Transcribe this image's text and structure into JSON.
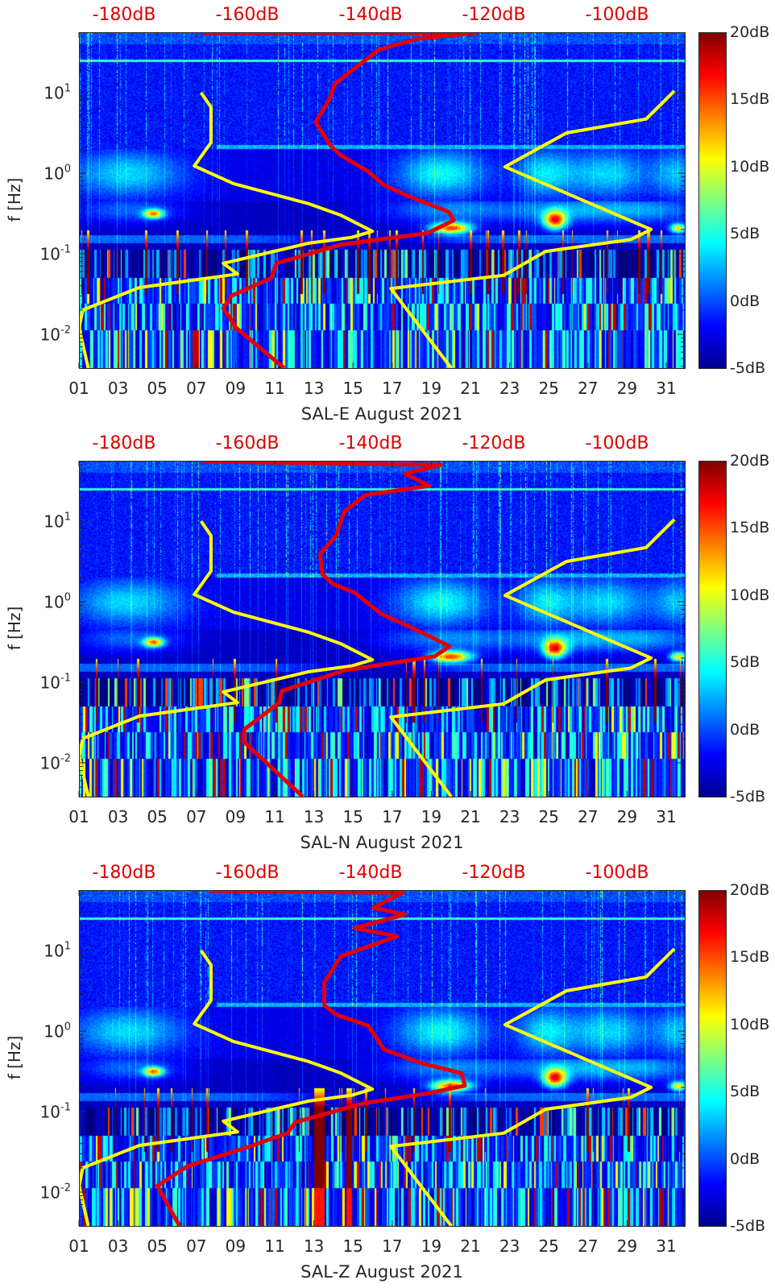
{
  "chart_data": [
    {
      "type": "heatmap",
      "xlabel": "SAL-E August 2021",
      "ylabel": "f [Hz]",
      "xlim": [
        1,
        32
      ],
      "ylim": [
        0.0038,
        56
      ],
      "x_ticks": [
        "01",
        "03",
        "05",
        "07",
        "09",
        "11",
        "13",
        "15",
        "17",
        "19",
        "21",
        "23",
        "25",
        "27",
        "29",
        "31"
      ],
      "y_ticks": [
        {
          "base": "10",
          "exp": "1",
          "value": 10
        },
        {
          "base": "10",
          "exp": "0",
          "value": 1
        },
        {
          "base": "10",
          "exp": "-1",
          "value": 0.1
        },
        {
          "base": "10",
          "exp": "-2",
          "value": 0.01
        }
      ],
      "top_axis": {
        "values": [
          -180,
          -160,
          -140,
          -120,
          -100
        ],
        "labels": [
          "-180dB",
          "-160dB",
          "-140dB",
          "-120dB",
          "-100dB"
        ]
      },
      "colorbar": {
        "range": [
          -5,
          20
        ],
        "labels": [
          "20dB",
          "15dB",
          "10dB",
          "5dB",
          "0dB",
          "-5dB"
        ]
      },
      "low_noise_model": {
        "color": "#ffff00",
        "points": [
          [
            10,
            -167.5
          ],
          [
            6.6,
            -165.9
          ],
          [
            2.4,
            -165.9
          ],
          [
            1.23,
            -168.6
          ],
          [
            0.74,
            -162.2
          ],
          [
            0.42,
            -150.1
          ],
          [
            0.3,
            -144.8
          ],
          [
            0.19,
            -139.7
          ],
          [
            0.16,
            -143.0
          ],
          [
            0.135,
            -150.1
          ],
          [
            0.076,
            -163.9
          ],
          [
            0.056,
            -161.6
          ],
          [
            0.038,
            -177.5
          ],
          [
            0.02,
            -186.7
          ],
          [
            0.012,
            -187.3
          ],
          [
            0.0038,
            -185.8
          ]
        ]
      },
      "high_noise_model": {
        "color": "#ffff00",
        "points": [
          [
            10.5,
            -90.7
          ],
          [
            4.7,
            -95.3
          ],
          [
            3.16,
            -108.2
          ],
          [
            1.2,
            -118.2
          ],
          [
            0.2,
            -94.5
          ],
          [
            0.15,
            -97.8
          ],
          [
            0.107,
            -111.6
          ],
          [
            0.054,
            -118.4
          ],
          [
            0.037,
            -136.7
          ],
          [
            0.0038,
            -126.9
          ]
        ]
      },
      "psd": {
        "color": "#e3000b",
        "points": [
          [
            55,
            -167.2
          ],
          [
            55,
            -123.0
          ],
          [
            47,
            -132.2
          ],
          [
            34,
            -138.7
          ],
          [
            20,
            -142.6
          ],
          [
            12.6,
            -145.9
          ],
          [
            8.9,
            -146.5
          ],
          [
            4.3,
            -148.9
          ],
          [
            2.2,
            -146.5
          ],
          [
            1.66,
            -144.8
          ],
          [
            1.05,
            -140.4
          ],
          [
            0.71,
            -137.8
          ],
          [
            0.52,
            -133.9
          ],
          [
            0.33,
            -127.3
          ],
          [
            0.26,
            -126.5
          ],
          [
            0.18,
            -130.8
          ],
          [
            0.13,
            -144.8
          ],
          [
            0.076,
            -155.3
          ],
          [
            0.05,
            -156.1
          ],
          [
            0.03,
            -162.6
          ],
          [
            0.021,
            -163.9
          ],
          [
            0.012,
            -161.8
          ],
          [
            0.0038,
            -154.0
          ]
        ]
      }
    },
    {
      "type": "heatmap",
      "xlabel": "SAL-N August 2021",
      "ylabel": "f [Hz]",
      "xlim": [
        1,
        32
      ],
      "ylim": [
        0.0038,
        56
      ],
      "x_ticks": [
        "01",
        "03",
        "05",
        "07",
        "09",
        "11",
        "13",
        "15",
        "17",
        "19",
        "21",
        "23",
        "25",
        "27",
        "29",
        "31"
      ],
      "y_ticks": [
        {
          "base": "10",
          "exp": "1",
          "value": 10
        },
        {
          "base": "10",
          "exp": "0",
          "value": 1
        },
        {
          "base": "10",
          "exp": "-1",
          "value": 0.1
        },
        {
          "base": "10",
          "exp": "-2",
          "value": 0.01
        }
      ],
      "top_axis": {
        "values": [
          -180,
          -160,
          -140,
          -120,
          -100
        ],
        "labels": [
          "-180dB",
          "-160dB",
          "-140dB",
          "-120dB",
          "-100dB"
        ]
      },
      "colorbar": {
        "range": [
          -5,
          20
        ],
        "labels": [
          "20dB",
          "15dB",
          "10dB",
          "5dB",
          "0dB",
          "-5dB"
        ]
      },
      "low_noise_model": {
        "color": "#ffff00",
        "points": [
          [
            10,
            -167.5
          ],
          [
            6.6,
            -165.9
          ],
          [
            2.4,
            -165.9
          ],
          [
            1.23,
            -168.6
          ],
          [
            0.74,
            -162.2
          ],
          [
            0.42,
            -150.1
          ],
          [
            0.3,
            -144.8
          ],
          [
            0.19,
            -139.7
          ],
          [
            0.16,
            -143.0
          ],
          [
            0.135,
            -150.1
          ],
          [
            0.076,
            -163.9
          ],
          [
            0.056,
            -161.6
          ],
          [
            0.038,
            -177.5
          ],
          [
            0.02,
            -186.7
          ],
          [
            0.012,
            -187.3
          ],
          [
            0.0038,
            -185.8
          ]
        ]
      },
      "high_noise_model": {
        "color": "#ffff00",
        "points": [
          [
            10.5,
            -90.7
          ],
          [
            4.7,
            -95.3
          ],
          [
            3.16,
            -108.2
          ],
          [
            1.2,
            -118.2
          ],
          [
            0.2,
            -94.5
          ],
          [
            0.15,
            -97.8
          ],
          [
            0.107,
            -111.6
          ],
          [
            0.054,
            -118.4
          ],
          [
            0.037,
            -136.7
          ],
          [
            0.0038,
            -126.9
          ]
        ]
      },
      "psd": {
        "color": "#e3000b",
        "points": [
          [
            55,
            -167.2
          ],
          [
            50,
            -128.6
          ],
          [
            39,
            -134.4
          ],
          [
            27.5,
            -130.5
          ],
          [
            21,
            -140.9
          ],
          [
            13,
            -144.3
          ],
          [
            6.6,
            -145.6
          ],
          [
            3.9,
            -148.2
          ],
          [
            2.2,
            -147.8
          ],
          [
            1.66,
            -146.1
          ],
          [
            1.3,
            -142.6
          ],
          [
            0.71,
            -138.3
          ],
          [
            0.42,
            -131.8
          ],
          [
            0.28,
            -127.2
          ],
          [
            0.21,
            -129.6
          ],
          [
            0.14,
            -144.3
          ],
          [
            0.078,
            -154.4
          ],
          [
            0.056,
            -154.8
          ],
          [
            0.026,
            -160.5
          ],
          [
            0.018,
            -160.5
          ],
          [
            0.0038,
            -151.0
          ]
        ]
      }
    },
    {
      "type": "heatmap",
      "xlabel": "SAL-Z August 2021",
      "ylabel": "f [Hz]",
      "xlim": [
        1,
        32
      ],
      "ylim": [
        0.0038,
        56
      ],
      "x_ticks": [
        "01",
        "03",
        "05",
        "07",
        "09",
        "11",
        "13",
        "15",
        "17",
        "19",
        "21",
        "23",
        "25",
        "27",
        "29",
        "31"
      ],
      "y_ticks": [
        {
          "base": "10",
          "exp": "1",
          "value": 10
        },
        {
          "base": "10",
          "exp": "0",
          "value": 1
        },
        {
          "base": "10",
          "exp": "-1",
          "value": 0.1
        },
        {
          "base": "10",
          "exp": "-2",
          "value": 0.01
        }
      ],
      "top_axis": {
        "values": [
          -180,
          -160,
          -140,
          -120,
          -100
        ],
        "labels": [
          "-180dB",
          "-160dB",
          "-140dB",
          "-120dB",
          "-100dB"
        ]
      },
      "colorbar": {
        "range": [
          -5,
          20
        ],
        "labels": [
          "20dB",
          "15dB",
          "10dB",
          "5dB",
          "0dB",
          "-5dB"
        ]
      },
      "low_noise_model": {
        "color": "#ffff00",
        "points": [
          [
            10,
            -167.5
          ],
          [
            6.6,
            -165.9
          ],
          [
            2.4,
            -165.9
          ],
          [
            1.23,
            -168.6
          ],
          [
            0.74,
            -162.2
          ],
          [
            0.42,
            -150.1
          ],
          [
            0.3,
            -144.8
          ],
          [
            0.19,
            -139.7
          ],
          [
            0.16,
            -143.0
          ],
          [
            0.135,
            -150.1
          ],
          [
            0.076,
            -163.9
          ],
          [
            0.056,
            -161.6
          ],
          [
            0.038,
            -177.5
          ],
          [
            0.02,
            -186.7
          ],
          [
            0.012,
            -187.3
          ],
          [
            0.0038,
            -185.8
          ]
        ]
      },
      "high_noise_model": {
        "color": "#ffff00",
        "points": [
          [
            10.5,
            -90.7
          ],
          [
            4.7,
            -95.3
          ],
          [
            3.16,
            -108.2
          ],
          [
            1.2,
            -118.2
          ],
          [
            0.2,
            -94.5
          ],
          [
            0.15,
            -97.8
          ],
          [
            0.107,
            -111.6
          ],
          [
            0.054,
            -118.4
          ],
          [
            0.037,
            -136.7
          ],
          [
            0.0038,
            -126.9
          ]
        ]
      },
      "psd": {
        "color": "#e3000b",
        "points": [
          [
            55,
            -166.1
          ],
          [
            52,
            -134.8
          ],
          [
            34,
            -139.6
          ],
          [
            28,
            -134.4
          ],
          [
            19,
            -142.6
          ],
          [
            15,
            -135.7
          ],
          [
            8.5,
            -144.8
          ],
          [
            4,
            -147.5
          ],
          [
            2.1,
            -147.5
          ],
          [
            1.6,
            -145.6
          ],
          [
            1.17,
            -140.4
          ],
          [
            0.59,
            -137.8
          ],
          [
            0.4,
            -131.8
          ],
          [
            0.3,
            -125.2
          ],
          [
            0.21,
            -124.7
          ],
          [
            0.17,
            -130.5
          ],
          [
            0.126,
            -141.3
          ],
          [
            0.074,
            -152.2
          ],
          [
            0.054,
            -153.5
          ],
          [
            0.037,
            -159.6
          ],
          [
            0.021,
            -169.7
          ],
          [
            0.012,
            -174.6
          ],
          [
            0.0038,
            -171.0
          ]
        ]
      }
    }
  ]
}
